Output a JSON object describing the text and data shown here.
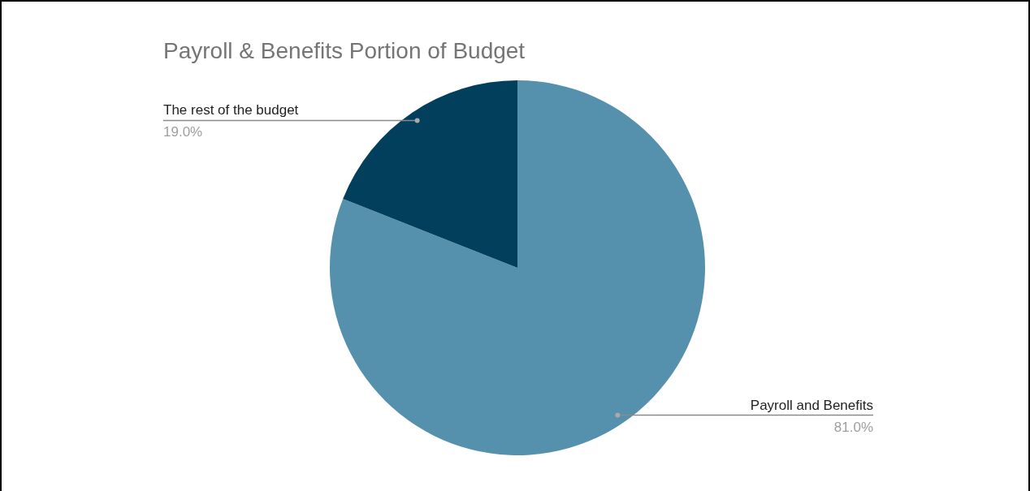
{
  "chart_data": {
    "type": "pie",
    "title": "Payroll & Benefits Portion of Budget",
    "categories": [
      "Payroll and Benefits",
      "The rest of the budget"
    ],
    "values": [
      81,
      19
    ],
    "colors": [
      "#5591ad",
      "#013f5c"
    ],
    "value_labels": [
      "81.0%",
      "19.0%"
    ]
  }
}
